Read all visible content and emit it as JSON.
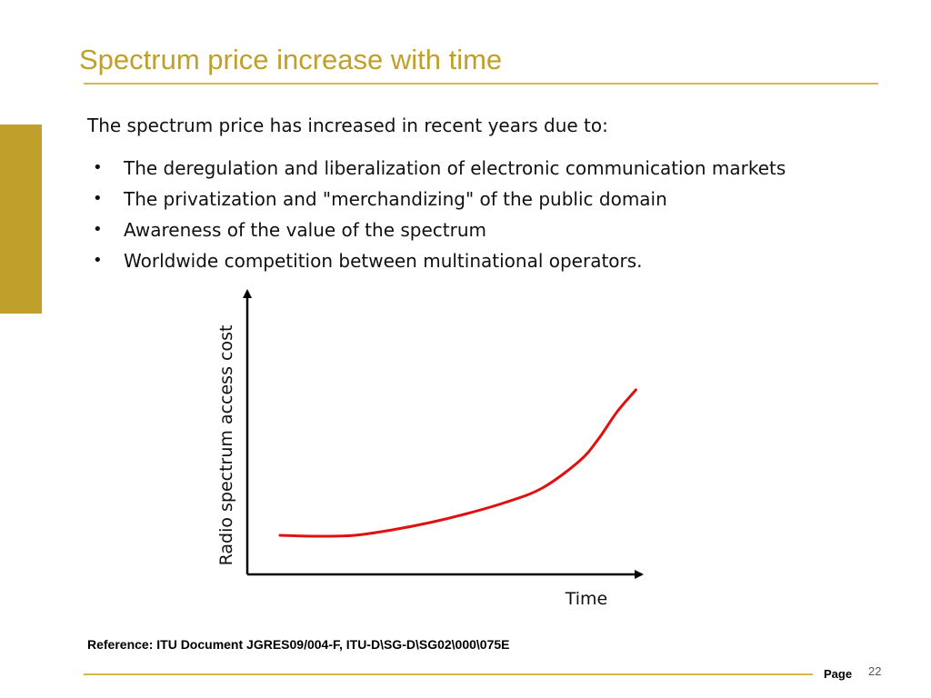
{
  "slide": {
    "title": "Spectrum price increase with time",
    "intro": "The spectrum price has increased in recent years due to:",
    "bullets": [
      "The deregulation and liberalization of electronic communication markets",
      "The privatization and \"merchandizing\" of the public domain",
      "Awareness of the value of the spectrum",
      "Worldwide competition between multinational operators."
    ],
    "bullet_glyph": "•",
    "reference": "Reference: ITU Document JGRES09/004-F, ITU-D\\SG-D\\SG02\\000\\075E"
  },
  "footer": {
    "page_label": "Page",
    "page_number": "22"
  },
  "colors": {
    "accent": "#c0a02a",
    "curve": "#e01010"
  },
  "chart_data": {
    "type": "line",
    "title": "",
    "xlabel": "Time",
    "ylabel": "Radio spectrum access cost",
    "grid": false,
    "ticks": false,
    "xlim": [
      0,
      10
    ],
    "ylim": [
      0,
      10
    ],
    "series": [
      {
        "name": "Radio spectrum access cost",
        "x": [
          0,
          1,
          2,
          3,
          4,
          5,
          6,
          7,
          8,
          8.5,
          9.0,
          9.5
        ],
        "y": [
          0.3,
          0.25,
          0.3,
          0.6,
          1.0,
          1.5,
          2.1,
          2.9,
          4.4,
          5.6,
          7.1,
          8.3
        ]
      }
    ]
  }
}
